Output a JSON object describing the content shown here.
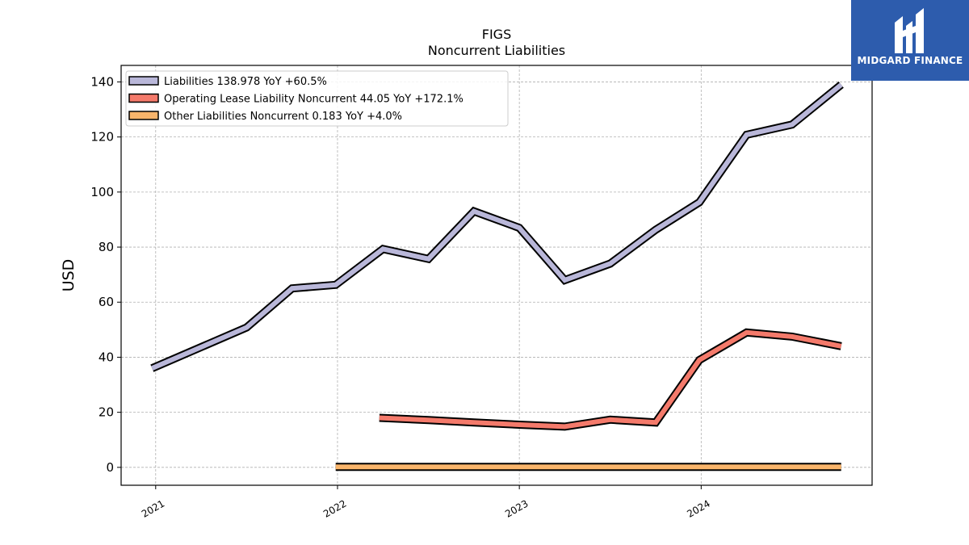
{
  "chart_data": {
    "type": "line",
    "title": "FIGS",
    "subtitle": "Noncurrent  Liabilities",
    "ylabel": "USD",
    "xlabel": "",
    "ylim": [
      -6.5,
      146
    ],
    "xlim": [
      2020.81,
      2024.94
    ],
    "y_ticks": [
      0,
      20,
      40,
      60,
      80,
      100,
      120,
      140
    ],
    "x_ticks": [
      {
        "label": "2021",
        "value": 2021.0
      },
      {
        "label": "2022",
        "value": 2022.0
      },
      {
        "label": "2023",
        "value": 2023.0
      },
      {
        "label": "2024",
        "value": 2024.0
      }
    ],
    "grid": true,
    "legend_position": "top-left",
    "series": [
      {
        "name": "Liabilities  138.978 YoY +60.5%",
        "color": "#b9b7d9",
        "x": [
          2020.98,
          2021.5,
          2021.75,
          2021.99,
          2022.25,
          2022.5,
          2022.75,
          2023.0,
          2023.25,
          2023.5,
          2023.75,
          2023.99,
          2024.25,
          2024.5,
          2024.77
        ],
        "y": [
          36,
          50.8,
          65,
          66.3,
          79.3,
          75.7,
          93,
          87,
          68,
          74,
          86.3,
          96.3,
          120.8,
          124.5,
          139
        ]
      },
      {
        "name": "Operating Lease Liability Noncurrent  44.05 YoY +172.1%",
        "color": "#f47a6b",
        "x": [
          2022.23,
          2022.5,
          2022.75,
          2023.0,
          2023.25,
          2023.5,
          2023.75,
          2023.99,
          2024.25,
          2024.5,
          2024.77
        ],
        "y": [
          18,
          17.2,
          16.3,
          15.5,
          14.8,
          17.3,
          16.3,
          39,
          49,
          47.5,
          44
        ]
      },
      {
        "name": "Other Liabilities Noncurrent  0.183 YoY +4.0%",
        "color": "#f9b56b",
        "x": [
          2021.99,
          2024.77
        ],
        "y": [
          0.18,
          0.18
        ]
      }
    ]
  },
  "logo": {
    "text": "MIDGARD FINANCE",
    "color": "#2d5cad"
  }
}
